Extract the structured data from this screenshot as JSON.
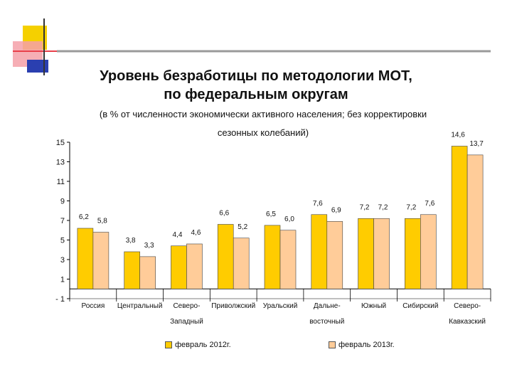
{
  "decor": {
    "yellow": "#f5d000",
    "red": "#e8404a",
    "pink": "#f4a0a8",
    "blue": "#2a3fb0",
    "line": "#9a9a9a"
  },
  "chart_data": {
    "type": "bar",
    "title": "Уровень безработицы по методологии МОТ,",
    "title2": "по федеральным округам",
    "subtitle1": "(в % от численности экономически активного населения; без корректировки",
    "subtitle2": "сезонных колебаний)",
    "categories": [
      [
        "Россия"
      ],
      [
        "Центральный"
      ],
      [
        "Северо-",
        "Западный"
      ],
      [
        "Приволжский"
      ],
      [
        "Уральский"
      ],
      [
        "Дальне-",
        "восточный"
      ],
      [
        "Южный"
      ],
      [
        "Сибирский"
      ],
      [
        "Северо-",
        "Кавказский"
      ]
    ],
    "series": [
      {
        "name": "февраль 2012г.",
        "color": "#ffcc00",
        "values": [
          6.2,
          3.8,
          4.4,
          6.6,
          6.5,
          7.6,
          7.2,
          7.2,
          14.6
        ],
        "labels": [
          "6,2",
          "3,8",
          "4,4",
          "6,6",
          "6,5",
          "7,6",
          "7,2",
          "7,2",
          "14,6"
        ]
      },
      {
        "name": "февраль 2013г.",
        "color": "#ffcc99",
        "values": [
          5.8,
          3.3,
          4.6,
          5.2,
          6.0,
          6.9,
          7.2,
          7.6,
          13.7
        ],
        "labels": [
          "5,8",
          "3,3",
          "4,6",
          "5,2",
          "6,0",
          "6,9",
          "7,2",
          "7,6",
          "13,7"
        ]
      }
    ],
    "ylim": [
      -1,
      15
    ],
    "yticks": [
      -1,
      1,
      3,
      5,
      7,
      9,
      11,
      13,
      15
    ],
    "ytick_labels": [
      "- 1",
      "1",
      "3",
      "5",
      "7",
      "9",
      "11",
      "13",
      "15"
    ],
    "grid": false,
    "legend_position": "bottom"
  }
}
